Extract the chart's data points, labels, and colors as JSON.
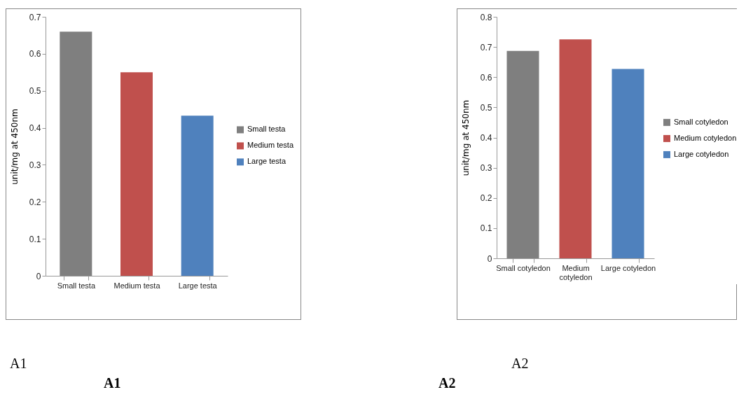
{
  "chart_data": [
    {
      "type": "bar",
      "ylabel": "unit/mg at 450nm",
      "categories": [
        "Small testa",
        "Medium testa",
        "Large testa"
      ],
      "series": [
        {
          "name": "Small testa",
          "color": "#7f7f7f",
          "values": [
            0.66,
            null,
            null
          ]
        },
        {
          "name": "Medium testa",
          "color": "#c0504d",
          "values": [
            null,
            0.55,
            null
          ]
        },
        {
          "name": "Large testa",
          "color": "#4f81bd",
          "values": [
            null,
            null,
            0.433
          ]
        }
      ],
      "ylim": [
        0,
        0.7
      ],
      "yticks": [
        0,
        0.1,
        0.2,
        0.3,
        0.4,
        0.5,
        0.6,
        0.7
      ],
      "legend": "right",
      "annotations": [
        "A1",
        "A1"
      ]
    },
    {
      "type": "bar",
      "ylabel": "unit/mg at 450nm",
      "categories": [
        "Small cotyledon",
        "Medium cotyledon",
        "Large cotyledon"
      ],
      "series": [
        {
          "name": "Small cotyledon",
          "color": "#7f7f7f",
          "values": [
            0.687,
            null,
            null
          ]
        },
        {
          "name": "Medium cotyledon",
          "color": "#c0504d",
          "values": [
            null,
            0.725,
            null
          ]
        },
        {
          "name": "Large cotyledon",
          "color": "#4f81bd",
          "values": [
            null,
            null,
            0.627
          ]
        }
      ],
      "ylim": [
        0,
        0.8
      ],
      "yticks": [
        0,
        0.1,
        0.2,
        0.3,
        0.4,
        0.5,
        0.6,
        0.7,
        0.8
      ],
      "legend": "right",
      "annotations": [
        "A2",
        "A2"
      ]
    }
  ]
}
